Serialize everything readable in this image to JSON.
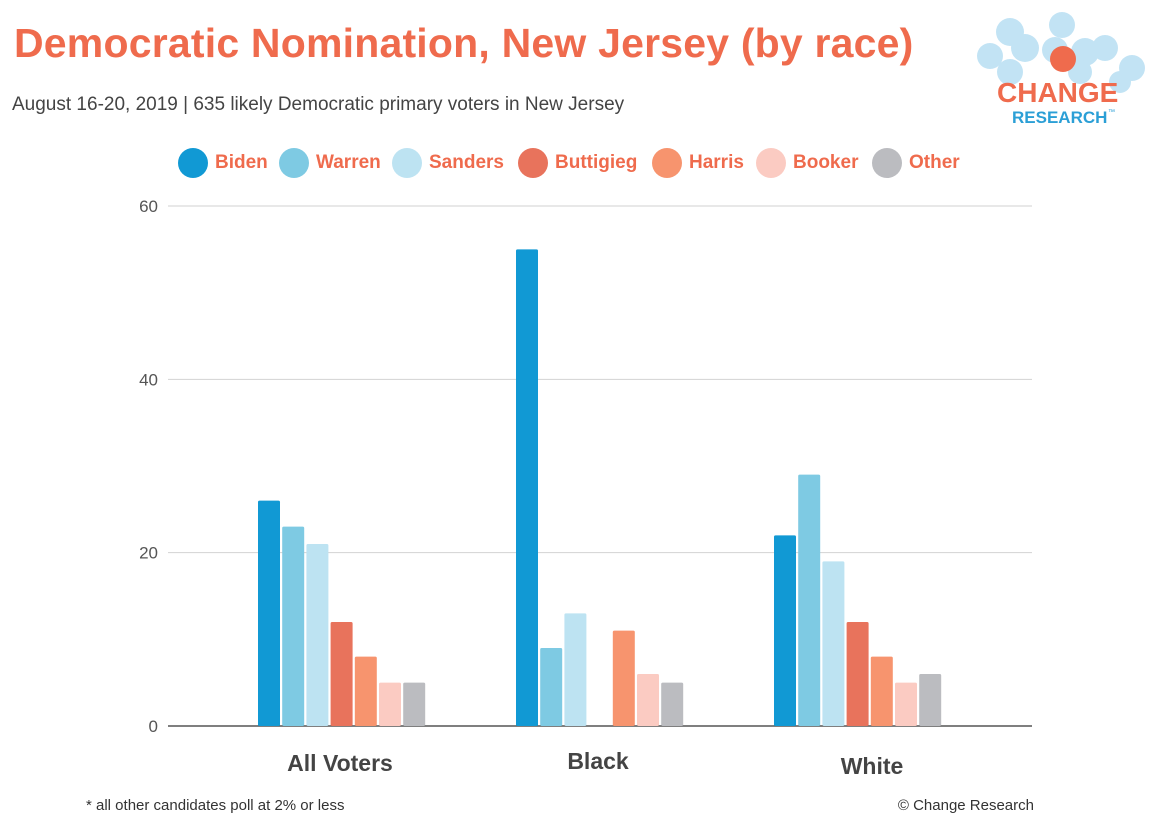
{
  "header": {
    "title": "Democratic Nomination, New Jersey (by race)",
    "subtitle": "August 16-20, 2019  | 635 likely Democratic primary voters in New Jersey"
  },
  "logo": {
    "line1": "CHANGE",
    "line2": "RESEARCH",
    "tm": "™"
  },
  "footer": {
    "note": "* all other candidates poll at 2% or less",
    "credit": "© Change Research"
  },
  "chart_data": {
    "type": "bar",
    "title": "Democratic Nomination, New Jersey (by race)",
    "xlabel": "",
    "ylabel": "",
    "ylim": [
      0,
      60
    ],
    "yticks": [
      0,
      20,
      40,
      60
    ],
    "ytick_labels": [
      "0",
      "20",
      "40",
      "60"
    ],
    "grid": true,
    "legend_position": "top",
    "categories": [
      "All Voters",
      "Black",
      "White"
    ],
    "series": [
      {
        "name": "Biden",
        "color": "#1199d4",
        "values": [
          26,
          55,
          22
        ]
      },
      {
        "name": "Warren",
        "color": "#7ecae3",
        "values": [
          23,
          9,
          29
        ]
      },
      {
        "name": "Sanders",
        "color": "#bde3f2",
        "values": [
          21,
          13,
          19
        ]
      },
      {
        "name": "Buttigieg",
        "color": "#e8735c",
        "values": [
          12,
          0,
          12
        ]
      },
      {
        "name": "Harris",
        "color": "#f7946e",
        "values": [
          8,
          11,
          8
        ]
      },
      {
        "name": "Booker",
        "color": "#fbcbc2",
        "values": [
          5,
          6,
          5
        ]
      },
      {
        "name": "Other",
        "color": "#bbbcc0",
        "values": [
          5,
          5,
          6
        ]
      }
    ]
  }
}
